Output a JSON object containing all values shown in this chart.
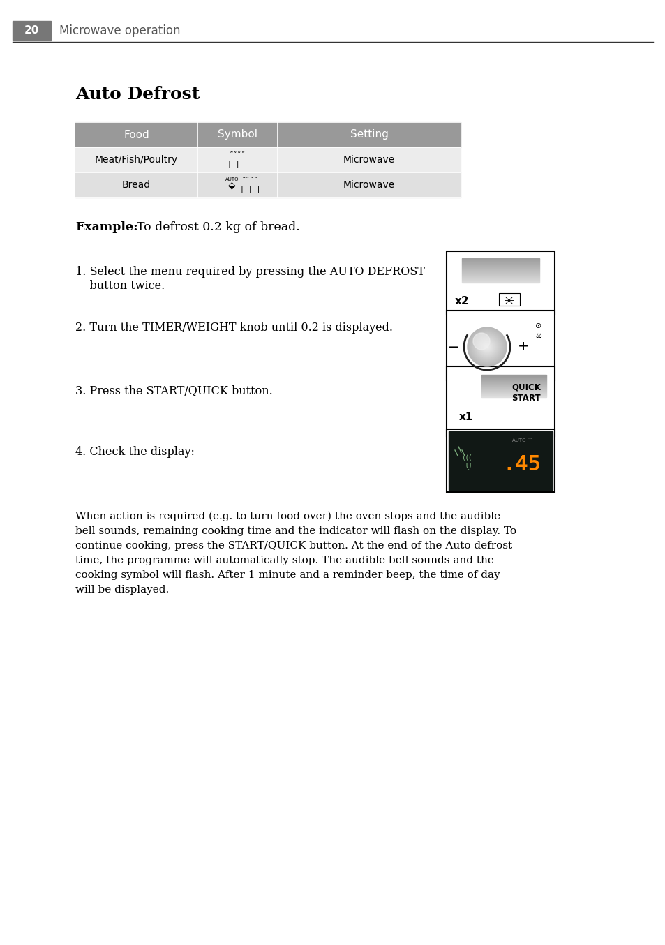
{
  "page_number": "20",
  "page_title": "Microwave operation",
  "section_title": "Auto Defrost",
  "header_bg": "#999999",
  "header_num_bg": "#777777",
  "header_text_color": "#ffffff",
  "row_header_bg": "#999999",
  "row1_bg": "#ececec",
  "row2_bg": "#e0e0e0",
  "table_headers": [
    "Food",
    "Symbol",
    "Setting"
  ],
  "table_row1_food": "Meat/Fish/Poultry",
  "table_row1_setting": "Microwave",
  "table_row2_food": "Bread",
  "table_row2_setting": "Microwave",
  "example_label": "Example:",
  "example_text": "To defrost 0.2 kg of bread.",
  "step1_a": "1. Select the menu required by pressing the AUTO DEFROST",
  "step1_b": "    button twice.",
  "step2": "2. Turn the TIMER/WEIGHT knob until 0.2 is displayed.",
  "step3": "3. Press the START/QUICK button.",
  "step4": "4. Check the display:",
  "footer_text": "When action is required (e.g. to turn food over) the oven stops and the audible\nbell sounds, remaining cooking time and the indicator will flash on the display. To\ncontinue cooking, press the START/QUICK button. At the end of the Auto defrost\ntime, the programme will automatically stop. The audible bell sounds and the\ncooking symbol will flash. After 1 minute and a reminder beep, the time of day\nwill be displayed.",
  "bg_color": "#ffffff"
}
